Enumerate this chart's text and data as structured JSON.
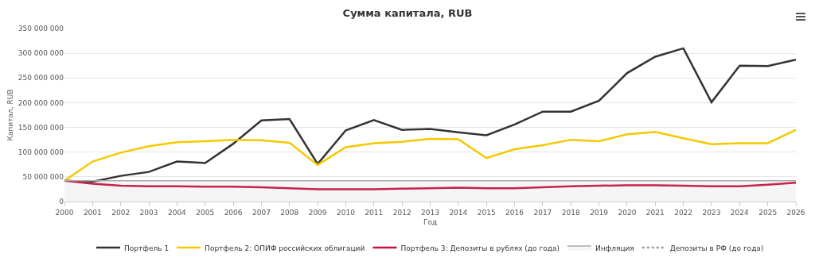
{
  "chart_data": {
    "type": "line",
    "title": "Сумма капитала, RUB",
    "xlabel": "Год",
    "ylabel": "Капитал, RUB",
    "x": [
      2000,
      2001,
      2002,
      2003,
      2004,
      2005,
      2006,
      2007,
      2008,
      2009,
      2010,
      2011,
      2012,
      2013,
      2014,
      2015,
      2016,
      2017,
      2018,
      2019,
      2020,
      2021,
      2022,
      2023,
      2024,
      2025,
      2026
    ],
    "xlim": [
      2000,
      2026
    ],
    "xticks": [
      2000,
      2001,
      2002,
      2003,
      2004,
      2005,
      2006,
      2007,
      2008,
      2009,
      2010,
      2011,
      2012,
      2013,
      2014,
      2015,
      2016,
      2017,
      2018,
      2019,
      2020,
      2021,
      2022,
      2023,
      2024,
      2025,
      2026
    ],
    "ylim": [
      0,
      350000000
    ],
    "yticks": [
      0,
      {
        "value": 50000000,
        "label": "50 000 000"
      },
      {
        "value": 100000000,
        "label": "100 000 000"
      },
      {
        "value": 150000000,
        "label": "150 000 000"
      },
      {
        "value": 200000000,
        "label": "200 000 000"
      },
      {
        "value": 250000000,
        "label": "250 000 000"
      },
      {
        "value": 300000000,
        "label": "300 000 000"
      },
      {
        "value": 350000000,
        "label": "350 000 000"
      }
    ],
    "grid": "y",
    "legend": "bottom",
    "marker": "none",
    "line_style": "solid",
    "series": [
      {
        "name": "Портфель 1",
        "color": "#333333",
        "values": [
          42000000,
          40000000,
          52000000,
          60000000,
          81000000,
          78000000,
          117000000,
          164000000,
          167000000,
          76000000,
          144000000,
          165000000,
          145000000,
          147000000,
          140000000,
          134000000,
          156000000,
          182000000,
          182000000,
          204000000,
          260000000,
          293000000,
          310000000,
          201000000,
          275000000,
          274000000,
          287000000
        ]
      },
      {
        "name": "Портфель 2: ОПИФ российских облигаций",
        "color": "#f5c800",
        "values": [
          42000000,
          81000000,
          99000000,
          112000000,
          120000000,
          122000000,
          125000000,
          124000000,
          119000000,
          74000000,
          110000000,
          118000000,
          121000000,
          127000000,
          126000000,
          88000000,
          106000000,
          114000000,
          125000000,
          122000000,
          136000000,
          141000000,
          128000000,
          116000000,
          118000000,
          118000000,
          145000000
        ]
      },
      {
        "name": "Портфель 3: Депозиты в рублях (до года)",
        "color": "#c8103e",
        "values": [
          42000000,
          36000000,
          32000000,
          31000000,
          31000000,
          30000000,
          30000000,
          29000000,
          27000000,
          25000000,
          25000000,
          25000000,
          26000000,
          27000000,
          28000000,
          27000000,
          27000000,
          29000000,
          31000000,
          32000000,
          33000000,
          33000000,
          32000000,
          31000000,
          31000000,
          34000000,
          38000000
        ]
      },
      {
        "name": "Инфляция",
        "type": "area",
        "color": "#aaaaaa",
        "values": [
          42000000,
          42000000,
          42000000,
          42000000,
          42000000,
          42000000,
          42000000,
          42000000,
          42000000,
          42000000,
          42000000,
          42000000,
          42000000,
          42000000,
          42000000,
          42000000,
          42000000,
          42000000,
          42000000,
          42000000,
          42000000,
          42000000,
          42000000,
          42000000,
          42000000,
          42000000,
          42000000
        ]
      },
      {
        "name": "Депозиты в РФ (до года)",
        "color": "#999999",
        "line_style": "dotted",
        "values": [
          null,
          null,
          null,
          null,
          null,
          null,
          null,
          null,
          null,
          null,
          null,
          null,
          null,
          null,
          null,
          null,
          null,
          null,
          null,
          null,
          null,
          null,
          null,
          null,
          null,
          null,
          null
        ]
      }
    ]
  }
}
